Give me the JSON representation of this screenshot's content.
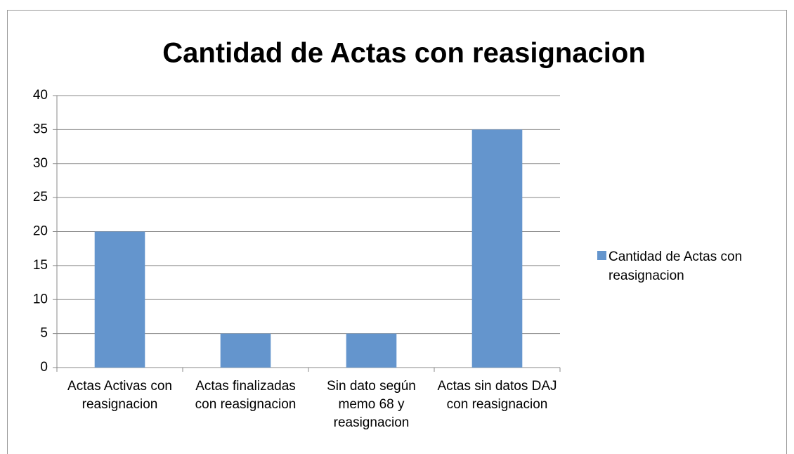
{
  "chart_data": {
    "type": "bar",
    "title": "Cantidad de Actas con reasignacion",
    "categories": [
      "Actas Activas con reasignacion",
      "Actas finalizadas con reasignacion",
      "Sin dato según memo 68 y reasignacion",
      "Actas sin datos DAJ con reasignacion"
    ],
    "series": [
      {
        "name": "Cantidad de Actas con reasignacion",
        "color": "#6495cd",
        "values": [
          20,
          5,
          5,
          35
        ]
      }
    ],
    "ylim": [
      0,
      40
    ],
    "yticks": [
      0,
      5,
      10,
      15,
      20,
      25,
      30,
      35,
      40
    ],
    "grid": true,
    "legend": "right"
  }
}
